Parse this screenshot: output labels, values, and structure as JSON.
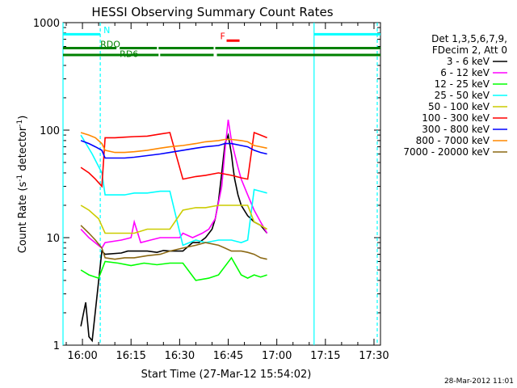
{
  "chart_data": {
    "type": "line",
    "title": "HESSI Observing Summary Count Rates",
    "xlabel": "Start Time (27-Mar-12 15:54:02)",
    "ylabel": "Count Rate (s",
    "ylabel_sup1": "-1",
    "ylabel_mid": " detector",
    "ylabel_sup2": "-1",
    "ylabel_end": ")",
    "y_scale": "log",
    "ylim": [
      1,
      1000
    ],
    "xlim_minutes": [
      0,
      98
    ],
    "x_ticks": [
      {
        "t": 6,
        "label": "16:00"
      },
      {
        "t": 21,
        "label": "16:15"
      },
      {
        "t": 36,
        "label": "16:30"
      },
      {
        "t": 51,
        "label": "16:45"
      },
      {
        "t": 66,
        "label": "17:00"
      },
      {
        "t": 81,
        "label": "17:15"
      },
      {
        "t": 96,
        "label": "17:30"
      }
    ],
    "y_ticks": [
      {
        "v": 1,
        "label": "1"
      },
      {
        "v": 10,
        "label": "10"
      },
      {
        "v": 100,
        "label": "100"
      },
      {
        "v": 1000,
        "label": "1000"
      }
    ],
    "legend_placement": "right",
    "legend_header": [
      "Det 1,3,5,6,7,9,",
      "FDecim 2, Att 0"
    ],
    "series": [
      {
        "name": "3 - 6 keV",
        "color": "#000000",
        "x": [
          5.5,
          7,
          8,
          9,
          12,
          13,
          18,
          20,
          23,
          26,
          29,
          31,
          33,
          35,
          37,
          40,
          42,
          44,
          46,
          47,
          48,
          49,
          50,
          51,
          52,
          52.5,
          53,
          54,
          55,
          57,
          58,
          59,
          61,
          62,
          63
        ],
        "y": [
          1.5,
          2.5,
          1.2,
          1.1,
          7.5,
          7,
          7.2,
          7.5,
          7.5,
          7.5,
          7.3,
          7.6,
          7.5,
          7.5,
          7.5,
          9,
          9,
          10,
          12,
          15,
          22,
          40,
          75,
          90,
          60,
          45,
          35,
          25,
          20,
          16,
          15,
          14,
          13,
          12,
          11
        ]
      },
      {
        "name": "6 - 12 keV",
        "color": "#ff00ff",
        "x": [
          5.5,
          8,
          12,
          13,
          18,
          21,
          22,
          24,
          27,
          30,
          33,
          36,
          37,
          40,
          43,
          45,
          47,
          49,
          50,
          51,
          52,
          53,
          54,
          55,
          57,
          59,
          61,
          63
        ],
        "y": [
          12,
          10,
          8,
          9,
          9.5,
          10,
          14,
          9,
          9.5,
          10,
          10,
          10,
          11,
          10,
          11,
          12,
          15,
          30,
          65,
          125,
          80,
          60,
          45,
          35,
          25,
          18,
          14,
          11
        ]
      },
      {
        "name": "12 - 25 keV",
        "color": "#00ff00",
        "x": [
          5.5,
          8,
          11,
          13,
          17,
          21,
          25,
          29,
          33,
          37,
          41,
          45,
          48,
          52,
          55,
          57,
          59,
          61,
          63
        ],
        "y": [
          5,
          4.5,
          4.2,
          6,
          5.8,
          5.5,
          5.8,
          5.6,
          5.8,
          5.8,
          4,
          4.2,
          4.5,
          6.5,
          4.5,
          4.2,
          4.5,
          4.3,
          4.5
        ]
      },
      {
        "name": "25 - 50 keV",
        "color": "#00ffff",
        "x": [
          5.5,
          9,
          12,
          13,
          16,
          19,
          22,
          26,
          30,
          33,
          37,
          41,
          44,
          48,
          52,
          55,
          57,
          59,
          61,
          63
        ],
        "y": [
          90,
          60,
          40,
          25,
          25,
          25,
          26,
          26,
          27,
          27,
          8.5,
          9.5,
          9,
          9.5,
          9.5,
          9,
          9.5,
          28,
          27,
          26
        ]
      },
      {
        "name": "50 - 100 keV",
        "color": "#cccc00",
        "x": [
          5.5,
          8,
          11,
          13,
          16,
          19,
          22,
          26,
          30,
          33,
          37,
          41,
          44,
          48,
          52,
          55,
          57,
          59,
          61,
          63
        ],
        "y": [
          20,
          18,
          15,
          11,
          11,
          11,
          11,
          12,
          12,
          12,
          18,
          19,
          19,
          20,
          20,
          20,
          20,
          14,
          13,
          12
        ]
      },
      {
        "name": "100 - 300 keV",
        "color": "#ff0000",
        "x": [
          5.5,
          8,
          10,
          12,
          13,
          16,
          19,
          22,
          26,
          30,
          33,
          37,
          41,
          44,
          48,
          52,
          55,
          57,
          59,
          61,
          63
        ],
        "y": [
          45,
          40,
          35,
          30,
          85,
          85,
          86,
          87,
          88,
          92,
          95,
          35,
          37,
          38,
          40,
          38,
          36,
          35,
          95,
          90,
          85
        ]
      },
      {
        "name": "300 - 800 keV",
        "color": "#0000ff",
        "x": [
          5.5,
          8,
          10,
          12,
          13,
          16,
          19,
          22,
          26,
          30,
          33,
          37,
          41,
          44,
          48,
          50,
          52,
          55,
          57,
          59,
          61,
          63
        ],
        "y": [
          80,
          75,
          70,
          65,
          55,
          55,
          55,
          56,
          58,
          60,
          62,
          65,
          68,
          70,
          72,
          75,
          75,
          72,
          70,
          65,
          62,
          60
        ]
      },
      {
        "name": "800 - 7000 keV",
        "color": "#ff8800",
        "x": [
          5.5,
          8,
          10,
          12,
          13,
          16,
          19,
          22,
          26,
          30,
          33,
          37,
          41,
          44,
          48,
          50,
          52,
          55,
          57,
          59,
          61,
          63
        ],
        "y": [
          95,
          90,
          85,
          75,
          65,
          62,
          62,
          63,
          65,
          68,
          70,
          72,
          75,
          78,
          80,
          82,
          82,
          80,
          78,
          72,
          70,
          68
        ]
      },
      {
        "name": "7000 - 20000 keV",
        "color": "#8b6914",
        "x": [
          5.5,
          8,
          10,
          12,
          13,
          16,
          19,
          22,
          26,
          30,
          33,
          37,
          41,
          44,
          48,
          50,
          52,
          55,
          57,
          59,
          61,
          63
        ],
        "y": [
          13,
          11,
          9.5,
          8,
          6.5,
          6.3,
          6.5,
          6.5,
          6.8,
          7,
          7.5,
          8,
          8.5,
          9,
          8.5,
          8,
          7.5,
          7.5,
          7.3,
          7,
          6.5,
          6.3
        ]
      }
    ],
    "flag_bars": [
      {
        "label": "N",
        "color": "#00ffff",
        "level": 780,
        "segments": [
          [
            0,
            11.5
          ],
          [
            77.5,
            98
          ]
        ]
      },
      {
        "label": "",
        "color": "#008000",
        "level": 580,
        "segments": [
          [
            0,
            16.5
          ],
          [
            17.5,
            29
          ],
          [
            29.5,
            46.5
          ],
          [
            47,
            98
          ]
        ]
      },
      {
        "label": "RD6",
        "color": "#008000",
        "level": 500,
        "segments": [
          [
            0,
            29.5
          ],
          [
            30,
            46.5
          ],
          [
            47.5,
            98
          ]
        ]
      },
      {
        "label": "F",
        "color": "#ff0000",
        "level": 680,
        "segments": [
          [
            50.5,
            54.5
          ]
        ]
      }
    ],
    "flag_text": [
      {
        "text": "N",
        "t": 12.5,
        "v": 800,
        "color": "#00ffff"
      },
      {
        "text": "RDO",
        "t": 11.5,
        "v": 590,
        "color": "#008000"
      },
      {
        "text": "RD6",
        "t": 17.5,
        "v": 480,
        "color": "#008000"
      },
      {
        "text": "F",
        "t": 48.5,
        "v": 700,
        "color": "#ff0000"
      }
    ],
    "vlines": [
      {
        "t": 0,
        "color": "#00ffff",
        "dash": false
      },
      {
        "t": 11.5,
        "color": "#00ffff",
        "dash": true
      },
      {
        "t": 77.5,
        "color": "#00ffff",
        "dash": false
      },
      {
        "t": 97,
        "color": "#00ffff",
        "dash": true
      }
    ],
    "footer_date": "28-Mar-2012 11:01"
  }
}
